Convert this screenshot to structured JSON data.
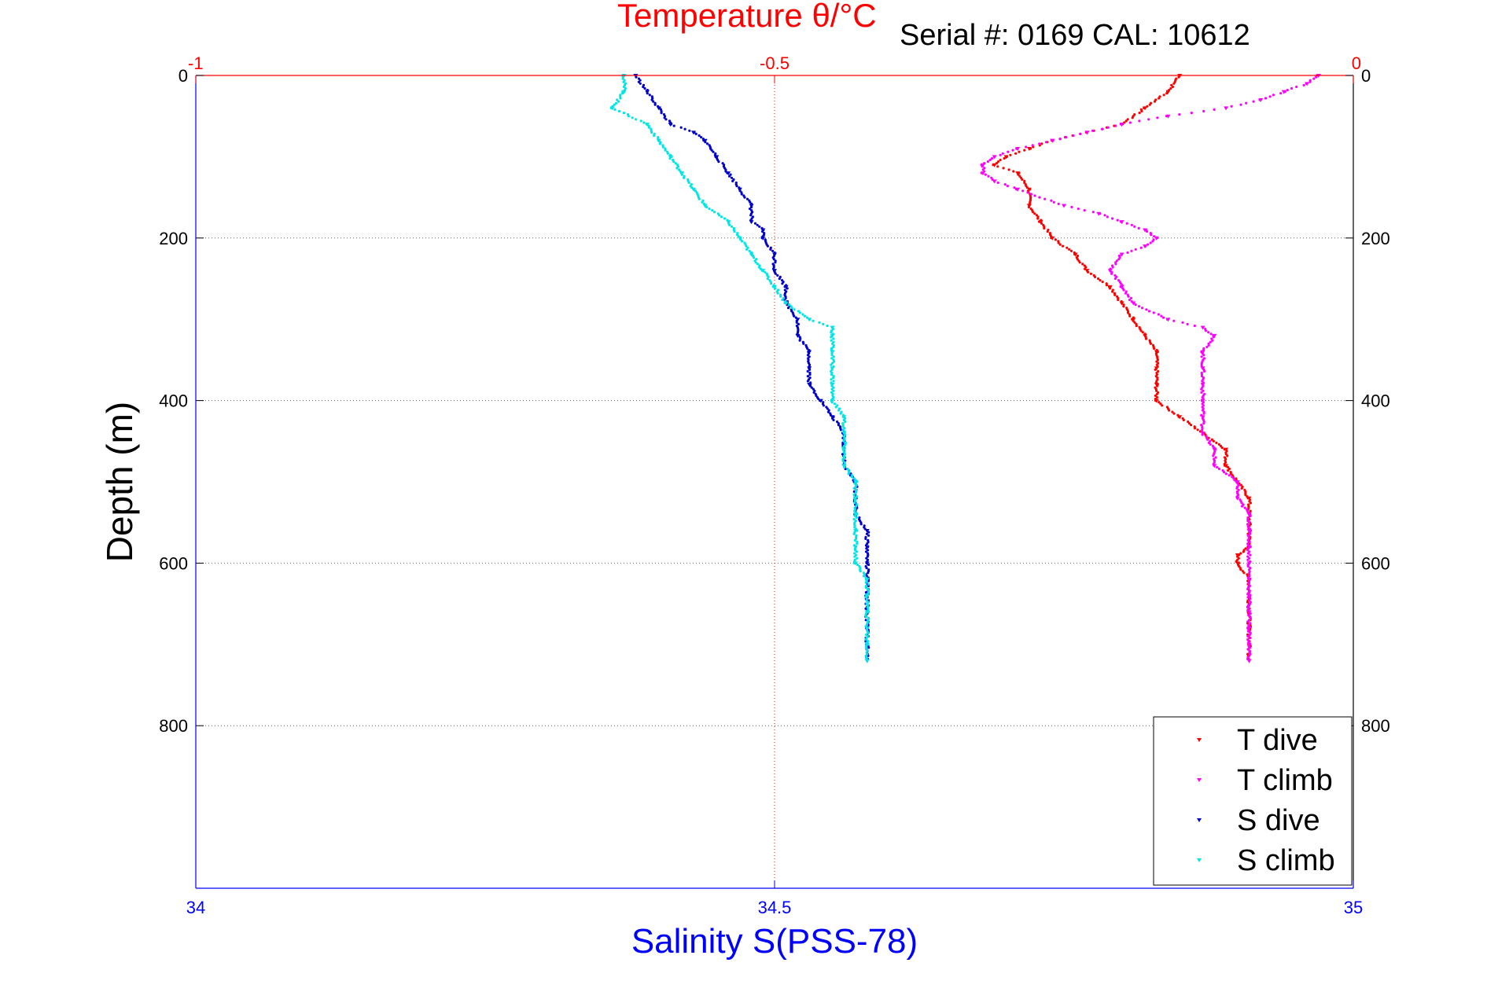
{
  "chart_data": {
    "type": "scatter",
    "top_title_part1": "Temperature θ/",
    "top_title_part2": "°C",
    "serial_label": "Serial #: 0169 CAL: 10612",
    "ylabel": "Depth (m)",
    "xlabel_bottom": "Salinity S(PSS-78)",
    "y_range": [
      0,
      1000
    ],
    "y_reversed": true,
    "y_ticks": [
      "0",
      "200",
      "400",
      "600",
      "800"
    ],
    "y_tick_values": [
      0,
      200,
      400,
      600,
      800
    ],
    "x_bottom_range": [
      34,
      35
    ],
    "x_bottom_ticks": [
      "34",
      "34.5",
      "35"
    ],
    "x_bottom_tick_values": [
      34,
      34.5,
      35
    ],
    "x_top_range": [
      -1,
      0
    ],
    "x_top_ticks": [
      "-1",
      "-0.5",
      "0"
    ],
    "x_top_tick_values": [
      -1,
      -0.5,
      0
    ],
    "grid": true,
    "legend_position": "bottom-right",
    "colors": {
      "t_dive": "#ff0000",
      "t_climb": "#ff00ff",
      "s_dive": "#0000cc",
      "s_climb": "#00e5e5",
      "top_axis": "#ff0000",
      "bottom_axis": "#0000ff"
    },
    "series": [
      {
        "name": "T dive",
        "axis": "top",
        "color": "#ff0000",
        "depth": [
          0,
          20,
          40,
          60,
          70,
          80,
          90,
          100,
          110,
          120,
          140,
          160,
          180,
          200,
          220,
          240,
          260,
          280,
          300,
          320,
          340,
          360,
          380,
          400,
          420,
          440,
          460,
          480,
          500,
          520,
          540,
          560,
          580,
          590,
          600,
          620,
          640,
          660,
          680,
          700,
          720
        ],
        "values": [
          -0.15,
          -0.16,
          -0.18,
          -0.2,
          -0.23,
          -0.26,
          -0.28,
          -0.3,
          -0.31,
          -0.29,
          -0.28,
          -0.28,
          -0.27,
          -0.26,
          -0.24,
          -0.23,
          -0.21,
          -0.2,
          -0.19,
          -0.18,
          -0.17,
          -0.17,
          -0.17,
          -0.17,
          -0.15,
          -0.13,
          -0.11,
          -0.11,
          -0.1,
          -0.09,
          -0.09,
          -0.09,
          -0.09,
          -0.1,
          -0.1,
          -0.09,
          -0.09,
          -0.09,
          -0.09,
          -0.09,
          -0.09
        ]
      },
      {
        "name": "T climb",
        "axis": "top",
        "color": "#ff00ff",
        "depth": [
          0,
          10,
          20,
          30,
          40,
          50,
          60,
          70,
          80,
          90,
          100,
          110,
          120,
          130,
          140,
          160,
          170,
          180,
          190,
          200,
          210,
          220,
          240,
          260,
          280,
          300,
          310,
          320,
          340,
          360,
          380,
          400,
          420,
          440,
          460,
          480,
          500,
          520,
          540,
          560,
          580,
          600,
          620,
          640,
          660,
          680,
          700,
          720
        ],
        "values": [
          -0.03,
          -0.04,
          -0.06,
          -0.08,
          -0.11,
          -0.16,
          -0.2,
          -0.23,
          -0.26,
          -0.29,
          -0.31,
          -0.32,
          -0.32,
          -0.31,
          -0.29,
          -0.25,
          -0.22,
          -0.2,
          -0.18,
          -0.17,
          -0.18,
          -0.2,
          -0.21,
          -0.2,
          -0.19,
          -0.16,
          -0.13,
          -0.12,
          -0.13,
          -0.13,
          -0.13,
          -0.13,
          -0.13,
          -0.13,
          -0.12,
          -0.12,
          -0.1,
          -0.1,
          -0.09,
          -0.09,
          -0.09,
          -0.09,
          -0.09,
          -0.09,
          -0.09,
          -0.09,
          -0.09,
          -0.09
        ]
      },
      {
        "name": "S dive",
        "axis": "bottom",
        "color": "#0000cc",
        "depth": [
          0,
          20,
          40,
          60,
          70,
          80,
          100,
          120,
          140,
          160,
          180,
          190,
          200,
          220,
          240,
          260,
          280,
          300,
          320,
          340,
          360,
          380,
          400,
          420,
          440,
          460,
          480,
          500,
          520,
          540,
          560,
          580,
          600,
          620,
          640,
          660,
          680,
          700,
          720
        ],
        "values": [
          34.38,
          34.39,
          34.4,
          34.41,
          34.43,
          34.44,
          34.45,
          34.46,
          34.47,
          34.48,
          34.48,
          34.49,
          34.49,
          34.5,
          34.5,
          34.51,
          34.51,
          34.52,
          34.52,
          34.53,
          34.53,
          34.53,
          34.54,
          34.55,
          34.56,
          34.56,
          34.56,
          34.57,
          34.57,
          34.57,
          34.58,
          34.58,
          34.58,
          34.58,
          34.58,
          34.58,
          34.58,
          34.58,
          34.58
        ]
      },
      {
        "name": "S climb",
        "axis": "bottom",
        "color": "#00e5e5",
        "depth": [
          0,
          20,
          40,
          60,
          80,
          100,
          120,
          140,
          160,
          180,
          200,
          220,
          240,
          260,
          280,
          300,
          310,
          320,
          340,
          360,
          380,
          400,
          420,
          440,
          460,
          480,
          500,
          520,
          540,
          560,
          580,
          600,
          620,
          640,
          660,
          680,
          700,
          720
        ],
        "values": [
          34.37,
          34.37,
          34.36,
          34.39,
          34.4,
          34.41,
          34.42,
          34.43,
          34.44,
          34.46,
          34.47,
          34.48,
          34.49,
          34.5,
          34.51,
          34.53,
          34.55,
          34.55,
          34.55,
          34.55,
          34.55,
          34.55,
          34.56,
          34.56,
          34.56,
          34.56,
          34.57,
          34.57,
          34.57,
          34.57,
          34.57,
          34.57,
          34.58,
          34.58,
          34.58,
          34.58,
          34.58,
          34.58
        ]
      }
    ]
  }
}
